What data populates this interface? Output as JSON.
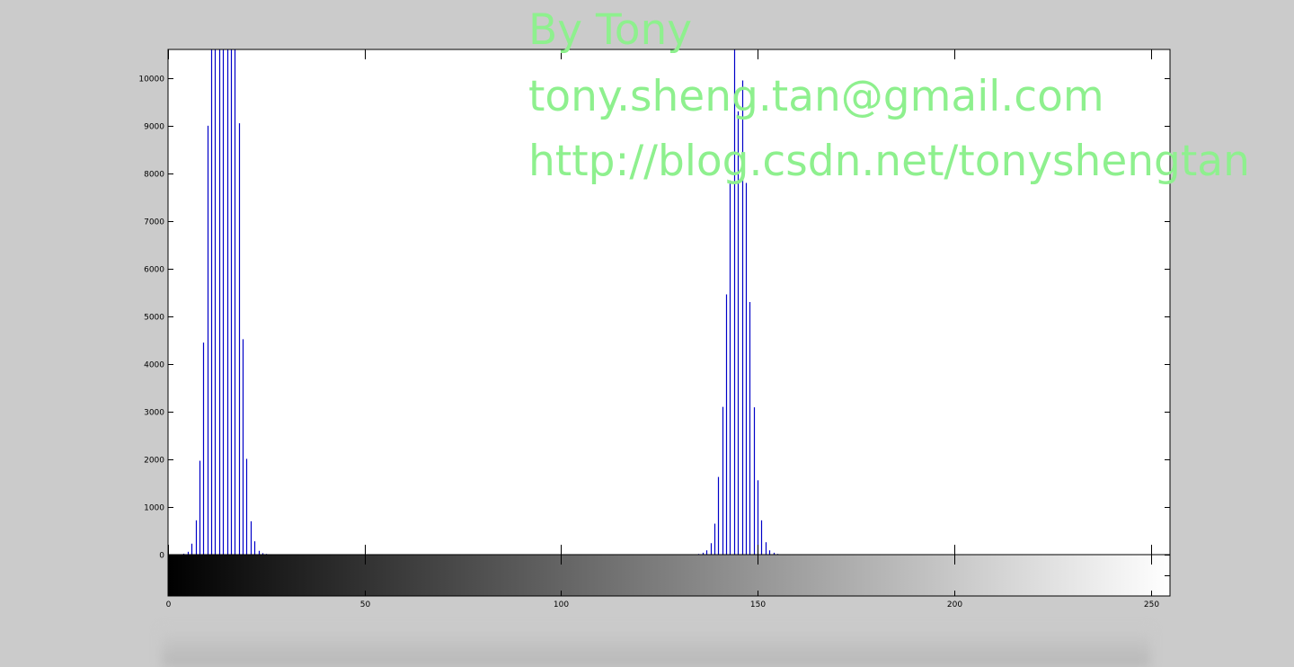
{
  "chart_data": {
    "type": "bar",
    "title": "",
    "xlabel": "",
    "ylabel": "",
    "xlim": [
      0,
      255
    ],
    "ylim": [
      0,
      10600
    ],
    "grid": false,
    "legend": "none",
    "bar_color": "#0000c8",
    "x_ticks": [
      0,
      50,
      100,
      150,
      200,
      250
    ],
    "y_ticks": [
      0,
      1000,
      2000,
      3000,
      4000,
      5000,
      6000,
      7000,
      8000,
      9000,
      10000
    ],
    "colorbar": {
      "type": "grayscale",
      "from": "#000000",
      "to": "#ffffff",
      "range": [
        0,
        255
      ]
    },
    "x": [
      3,
      4,
      5,
      6,
      7,
      8,
      9,
      10,
      11,
      12,
      13,
      14,
      15,
      16,
      17,
      18,
      19,
      20,
      21,
      22,
      23,
      24,
      25,
      26,
      27,
      135,
      136,
      137,
      138,
      139,
      140,
      141,
      142,
      143,
      144,
      145,
      146,
      147,
      148,
      149,
      150,
      151,
      152,
      153,
      154,
      155,
      156
    ],
    "values": [
      5,
      20,
      60,
      230,
      720,
      1970,
      4450,
      9000,
      10600,
      10600,
      10600,
      10600,
      10600,
      10600,
      10600,
      9050,
      4520,
      2010,
      700,
      280,
      80,
      30,
      15,
      8,
      5,
      15,
      40,
      90,
      240,
      650,
      1630,
      3100,
      5460,
      7850,
      10600,
      9300,
      9950,
      7800,
      5300,
      3090,
      1560,
      720,
      260,
      90,
      40,
      15,
      8
    ]
  },
  "watermark": {
    "line1": "By Tony",
    "line2": "tony.sheng.tan@gmail.com",
    "line3": "http://blog.csdn.net/tonyshengtan",
    "color": "#8ef08e"
  }
}
